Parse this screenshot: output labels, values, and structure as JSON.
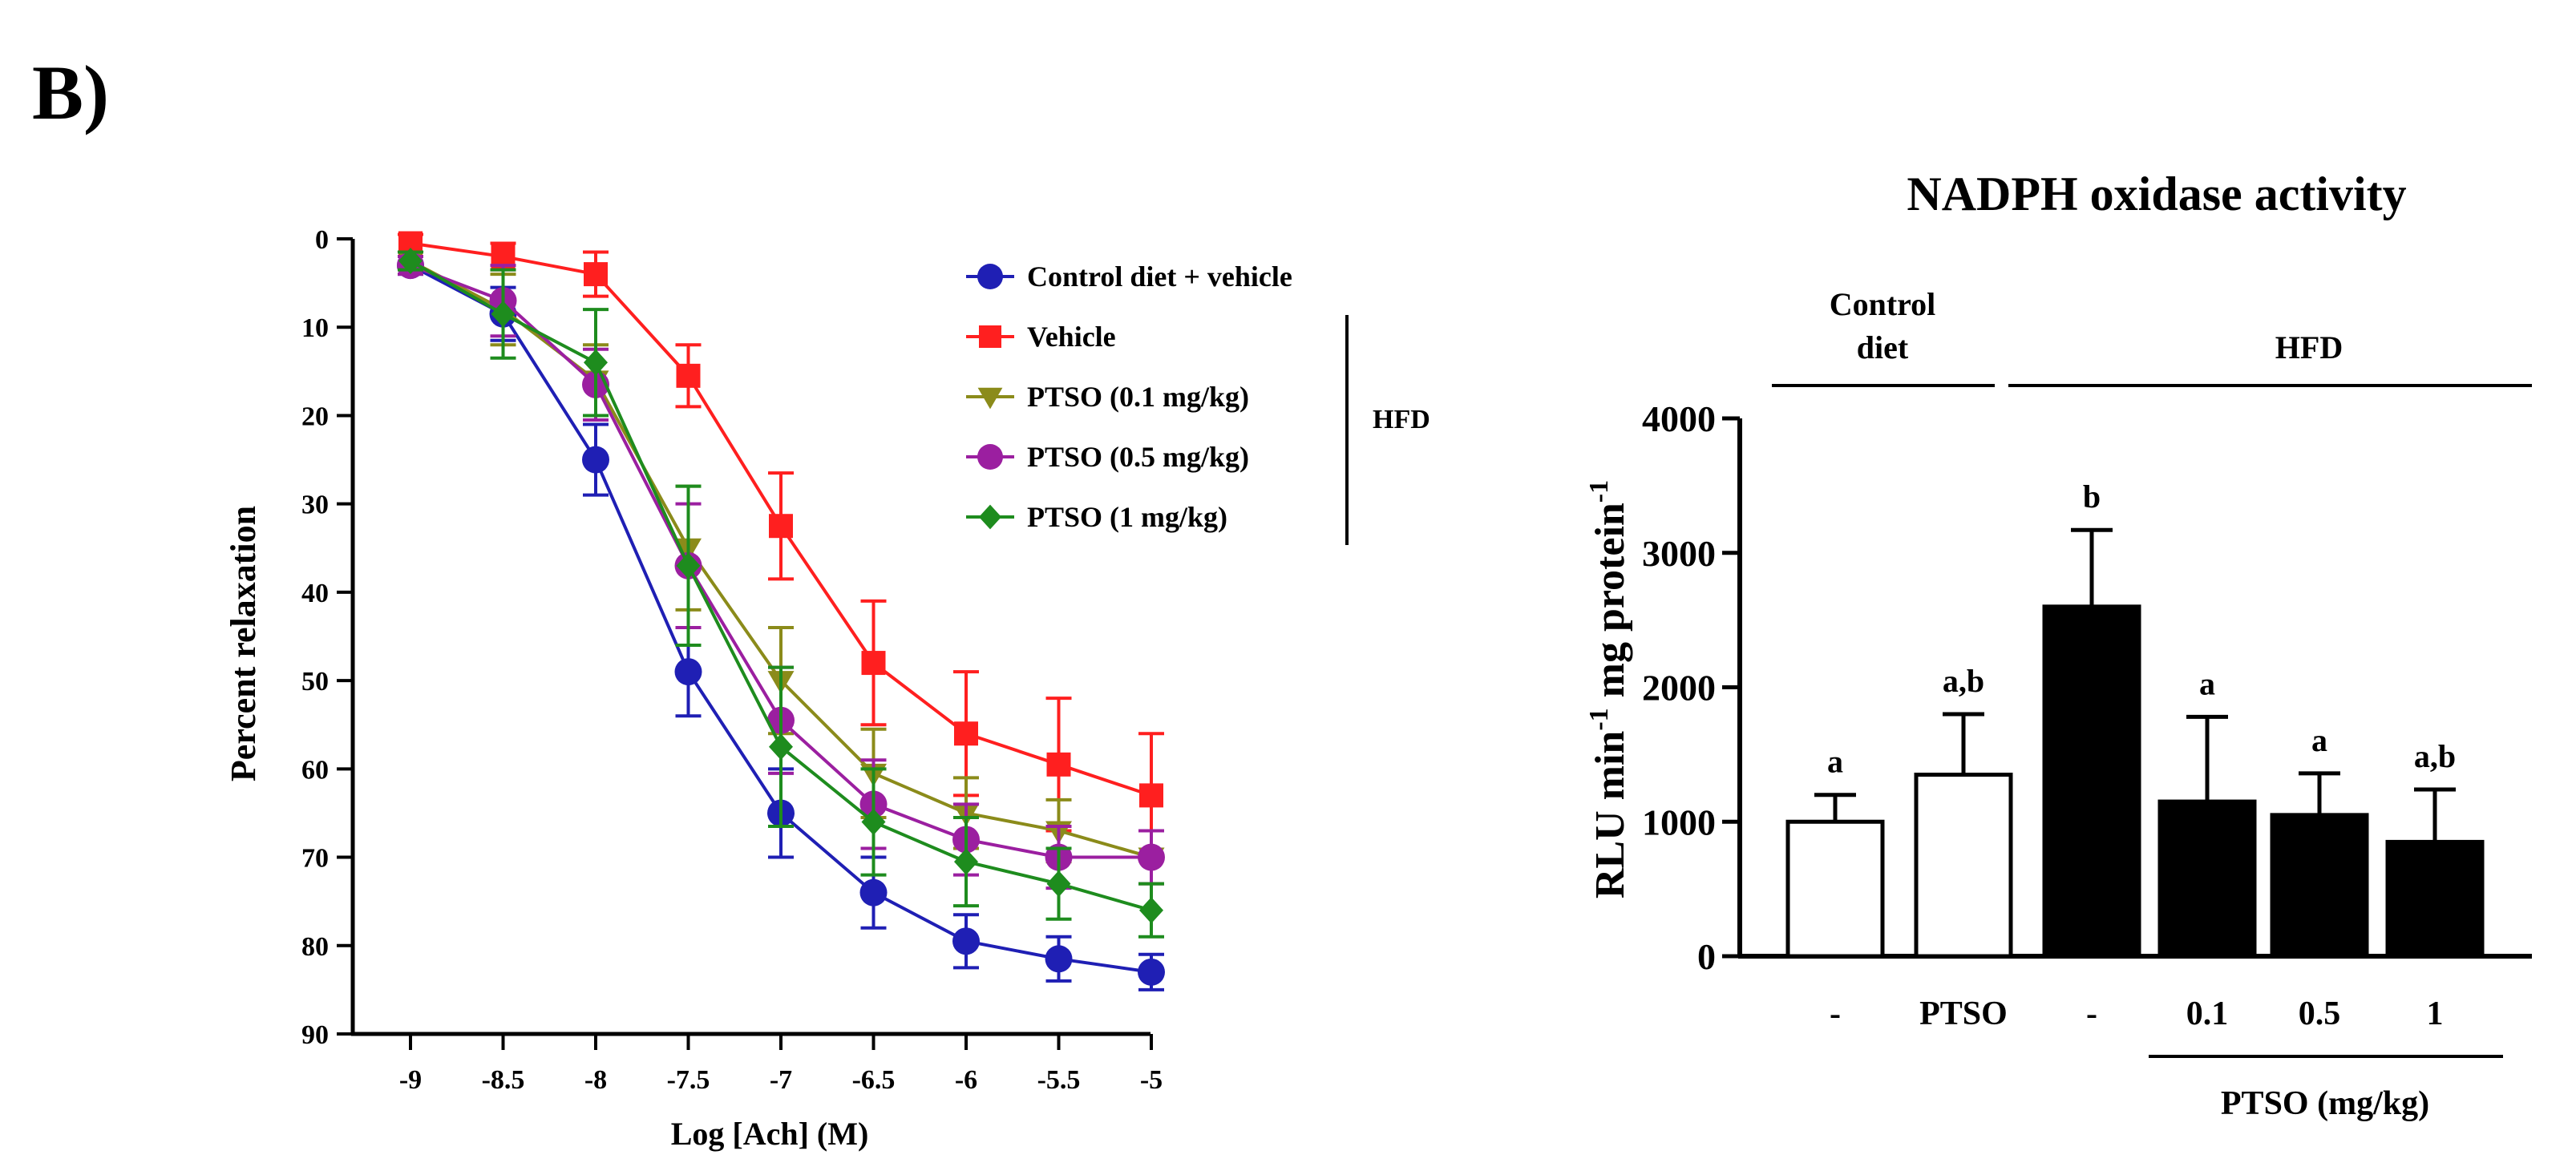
{
  "panel_label": "B)",
  "chart_data": [
    {
      "type": "line",
      "title": "",
      "xlabel": "Log [Ach] (M)",
      "ylabel": "Percent relaxation",
      "x": [
        -9,
        -8.5,
        -8,
        -7.5,
        -7,
        -6.5,
        -6,
        -5.5,
        -5
      ],
      "x_tick_labels": [
        "-9",
        "-8.5",
        "-8",
        "-7.5",
        "-7",
        "-6.5",
        "-6",
        "-5.5",
        "-5"
      ],
      "ylim": [
        0,
        90
      ],
      "y_inverted": true,
      "y_ticks": [
        0,
        10,
        20,
        30,
        40,
        50,
        60,
        70,
        80,
        90
      ],
      "y_tick_labels": [
        "0",
        "10",
        "20",
        "30",
        "40",
        "50",
        "60",
        "70",
        "80",
        "90"
      ],
      "legend_position": "top-right",
      "legend_group_label": "HFD",
      "series": [
        {
          "name": "Control diet + vehicle",
          "color": "#1F1FB4",
          "marker": "circle",
          "values": [
            3,
            8.5,
            25,
            49,
            65,
            74,
            79.5,
            81.5,
            83
          ],
          "errors": [
            1,
            3,
            4,
            5,
            5,
            4,
            3,
            2.5,
            2
          ]
        },
        {
          "name": "Vehicle",
          "color": "#FF1F1F",
          "marker": "square",
          "values": [
            0.5,
            2,
            4,
            15.5,
            32.5,
            48,
            56,
            59.5,
            63
          ],
          "errors": [
            1,
            1.5,
            2.5,
            3.5,
            6,
            7,
            7,
            7.5,
            7
          ]
        },
        {
          "name": "PTSO (0.1 mg/kg)",
          "color": "#8B8B1A",
          "marker": "triangle-down",
          "values": [
            2.5,
            8,
            16,
            35,
            50,
            60.5,
            65,
            67,
            70
          ],
          "errors": [
            1,
            4,
            4,
            7,
            6,
            5,
            4,
            3.5,
            3
          ]
        },
        {
          "name": "PTSO (0.5 mg/kg)",
          "color": "#9B1FA0",
          "marker": "circle",
          "values": [
            3,
            7,
            16.5,
            37,
            54.5,
            64,
            68,
            70,
            70
          ],
          "errors": [
            1,
            4,
            4,
            7,
            6,
            5,
            4,
            3.5,
            3
          ]
        },
        {
          "name": "PTSO (1 mg/kg)",
          "color": "#1E8C1E",
          "marker": "diamond",
          "values": [
            2.5,
            8.5,
            14,
            37,
            57.5,
            66,
            70.5,
            73,
            76
          ],
          "errors": [
            1,
            5,
            6,
            9,
            9,
            6,
            5,
            4,
            3
          ]
        }
      ]
    },
    {
      "type": "bar",
      "title": "NADPH oxidase activity",
      "ylabel_main": "RLU min",
      "ylabel_sup1": "-1",
      "ylabel_mid": " mg protein",
      "ylabel_sup2": "-1",
      "ylim": [
        0,
        4000
      ],
      "y_ticks": [
        0,
        1000,
        2000,
        3000,
        4000
      ],
      "y_tick_labels": [
        "0",
        "1000",
        "2000",
        "3000",
        "4000"
      ],
      "categories": [
        "-",
        "PTSO",
        "-",
        "0.1",
        "0.5",
        "1"
      ],
      "values": [
        1000,
        1350,
        2600,
        1150,
        1050,
        850
      ],
      "errors": [
        200,
        450,
        570,
        630,
        310,
        390
      ],
      "significance": [
        "a",
        "a,b",
        "b",
        "a",
        "a",
        "a,b"
      ],
      "fills": [
        "#ffffff",
        "#ffffff",
        "#000000",
        "#000000",
        "#000000",
        "#000000"
      ],
      "group_labels": {
        "control_line1": "Control",
        "control_line2": "diet",
        "hfd": "HFD"
      },
      "dose_group_label": "PTSO (mg/kg)"
    }
  ]
}
